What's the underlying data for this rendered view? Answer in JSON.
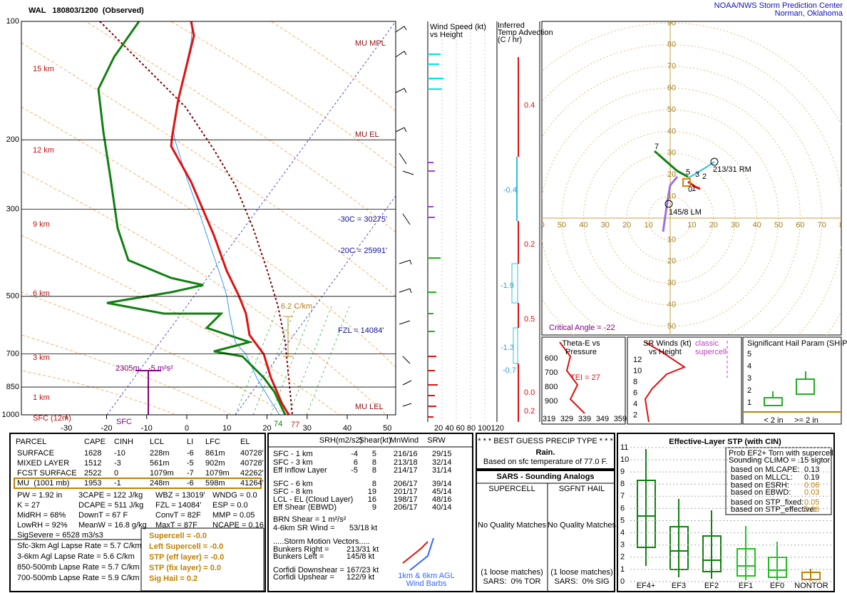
{
  "header": {
    "title": "WAL   180803/1200  (Observed)",
    "org": "NOAA/NWS Storm Prediction Center",
    "location": "Norman, Oklahoma"
  },
  "skewt": {
    "pressures": [
      100,
      200,
      300,
      500,
      700,
      850,
      1000
    ],
    "temps": [
      -30,
      -20,
      -10,
      0,
      10,
      20,
      30,
      40,
      50
    ],
    "heights": [
      "15 km",
      "12 km",
      "9 km",
      "6 km",
      "3 km",
      "1 km",
      "SFC (12m)"
    ],
    "levels": [
      "MU MPL",
      "MU EL",
      "MU LEL"
    ],
    "isotherm_heights": [
      "-30C = 30275'",
      "-20C = 25991'",
      "FZL = 14084'"
    ],
    "lapse": "6.2 C/km",
    "srh_depth": "2305m",
    "srh_value": "-5 m²s²",
    "srh_base": "SFC",
    "sfc_td": "74",
    "sfc_t": "77"
  },
  "wind_panel": {
    "title": [
      "Wind Speed (kt)",
      "vs Height"
    ],
    "axis": "20 40 60 80 100120"
  },
  "advection": {
    "title": [
      "Inferred",
      "Temp Advection",
      "(C / hr)"
    ],
    "values": [
      "0.4",
      "-0.4",
      "0.2",
      "-1.9",
      "0.5",
      "-1.3",
      "-0.7",
      "0.0",
      "0.2"
    ]
  },
  "hodograph": {
    "rings": [
      10,
      20,
      30,
      40,
      50,
      60,
      70,
      80,
      90
    ],
    "points": [
      "7",
      "5",
      "3",
      "2",
      "1",
      "0"
    ],
    "rm": "213/31 RM",
    "lm": "145/8 LM",
    "critical_angle": "Critical Angle = -22"
  },
  "theta_e": {
    "title": [
      "Theta-E vs",
      "Pressure"
    ],
    "pressures": [
      600,
      700,
      800,
      900
    ],
    "temps": [
      319,
      329,
      339,
      349,
      359
    ],
    "tei": "TEI = 27"
  },
  "sr_winds": {
    "title": [
      "SR Winds (kt)",
      "vs Height"
    ],
    "note": [
      "classic",
      "supercell"
    ],
    "heights": [
      12,
      10,
      8,
      6,
      4,
      2
    ]
  },
  "ship": {
    "title": "Significant Hail Param (SHIP)",
    "yticks": [
      5,
      4,
      3,
      2,
      1
    ],
    "categories": [
      "< 2 in",
      ">= 2 in"
    ]
  },
  "parcels": {
    "header": [
      "PARCEL",
      "CAPE",
      "CINH",
      "LCL",
      "LI",
      "LFC",
      "EL"
    ],
    "rows": [
      [
        "SURFACE",
        "1628",
        "-10",
        "228m",
        "-6",
        "861m",
        "40728'"
      ],
      [
        "MIXED LAYER",
        "1512",
        "-3",
        "561m",
        "-5",
        "902m",
        "40728'"
      ],
      [
        "FCST SURFACE",
        "2522",
        "0",
        "1079m",
        "-7",
        "1079m",
        "42262'"
      ],
      [
        "MU  (1001 mb)",
        "1953",
        "-1",
        "248m",
        "-6",
        "598m",
        "41264'"
      ]
    ]
  },
  "indices": [
    [
      "PW = 1.92 in",
      "K = 27",
      "MidRH = 68%",
      "LowRH = 92%",
      "SigSevere = 6528 m3/s3"
    ],
    [
      "3CAPE = 122 J/kg",
      "DCAPE = 511 J/kg",
      "DownT = 67 F",
      "MeanW = 16.8 g/kg"
    ],
    [
      "WBZ = 13019'",
      "FZL = 14084'",
      "ConvT = 82F",
      "MaxT = 87F"
    ],
    [
      "WNDG = 0.0",
      "ESP = 0.0",
      "MMP = 0.05",
      "NCAPE = 0.16"
    ]
  ],
  "lapse_rates": [
    "Sfc-3km Agl Lapse Rate = 5.7 C/km",
    "3-6km Agl Lapse Rate = 5.6 C/km",
    "850-500mb Lapse Rate = 5.7 C/km",
    "700-500mb Lapse Rate = 5.9 C/km"
  ],
  "composites": [
    "Supercell = -0.0",
    "Left Supercell = -0.0",
    "STP (eff layer) = -0.0",
    "STP (fix layer) = 0.0",
    "Sig Hail = 0.2"
  ],
  "kinematics": {
    "header": [
      "SRH(m2/s2)",
      "Shear(kt)",
      "MnWind",
      "SRW"
    ],
    "rows": [
      {
        "label": "SFC - 1 km",
        "srh": "-4",
        "shear": "5",
        "mnwind": "216/16",
        "srw": "29/15"
      },
      {
        "label": "SFC - 3 km",
        "srh": "6",
        "shear": "8",
        "mnwind": "213/18",
        "srw": "32/14"
      },
      {
        "label": "Eff Inflow Layer",
        "srh": "-5",
        "shear": "8",
        "mnwind": "214/17",
        "srw": "31/14"
      },
      {
        "label": "SFC - 6 km",
        "shear": "8",
        "mnwind": "206/17",
        "srw": "39/14"
      },
      {
        "label": "SFC - 8 km",
        "shear": "19",
        "mnwind": "201/17",
        "srw": "45/14"
      },
      {
        "label": "LCL - EL (Cloud Layer)",
        "shear": "16",
        "mnwind": "198/17",
        "srw": "48/16"
      },
      {
        "label": "Eff Shear (EBWD)",
        "shear": "9",
        "mnwind": "206/17",
        "srw": "40/14"
      }
    ],
    "brn": "BRN Shear = 1 m²/s²",
    "sr46_label": "4-6km SR Wind =",
    "sr46": "53/18 kt",
    "motion_title": ".....Storm Motion Vectors.....",
    "motions": [
      [
        "Bunkers Right =",
        "213/31 kt"
      ],
      [
        "Bunkers Left =",
        "145/8 kt"
      ],
      [
        "Corfidi Downshear =",
        "167/23 kt"
      ],
      [
        "Corfidi Upshear =",
        "122/9 kt"
      ]
    ],
    "barbs": [
      "1km & 6km AGL",
      "Wind Barbs"
    ]
  },
  "precip": {
    "title": "* * * BEST GUESS PRECIP TYPE * * *",
    "type": "Rain.",
    "basis": "Based on sfc temperature of 77.0 F."
  },
  "sars": {
    "title": "SARS - Sounding Analogs",
    "columns": [
      "SUPERCELL",
      "SGFNT HAIL"
    ],
    "matches": [
      "No Quality Matches",
      "No Quality Matches"
    ],
    "loose": [
      "(1 loose matches)",
      "(1 loose matches)"
    ],
    "result": [
      "SARS:  0% TOR",
      "SARS:  0% SIG"
    ]
  },
  "stp": {
    "title": "Effective-Layer STP (with CIN)",
    "yticks": [
      0,
      1,
      2,
      3,
      4,
      5,
      6,
      7,
      8,
      9,
      10,
      11
    ],
    "categories": [
      "EF4+",
      "EF3",
      "EF2",
      "EF1",
      "EF0",
      "NONTOR"
    ],
    "prob_title": [
      "Prob EF2+ Torn with supercell",
      "Sounding CLIMO = .15 sigtor"
    ],
    "prob": [
      [
        "based on MLCAPE:",
        "0.13"
      ],
      [
        "based on MLLCL:",
        "0.19"
      ],
      [
        "based on ESRH:",
        "0.06"
      ],
      [
        "based on EBWD:",
        "0.03"
      ],
      [
        "based on STP_fixed:",
        "0.05"
      ],
      [
        "based on STP_effective:",
        "0.06"
      ]
    ]
  }
}
